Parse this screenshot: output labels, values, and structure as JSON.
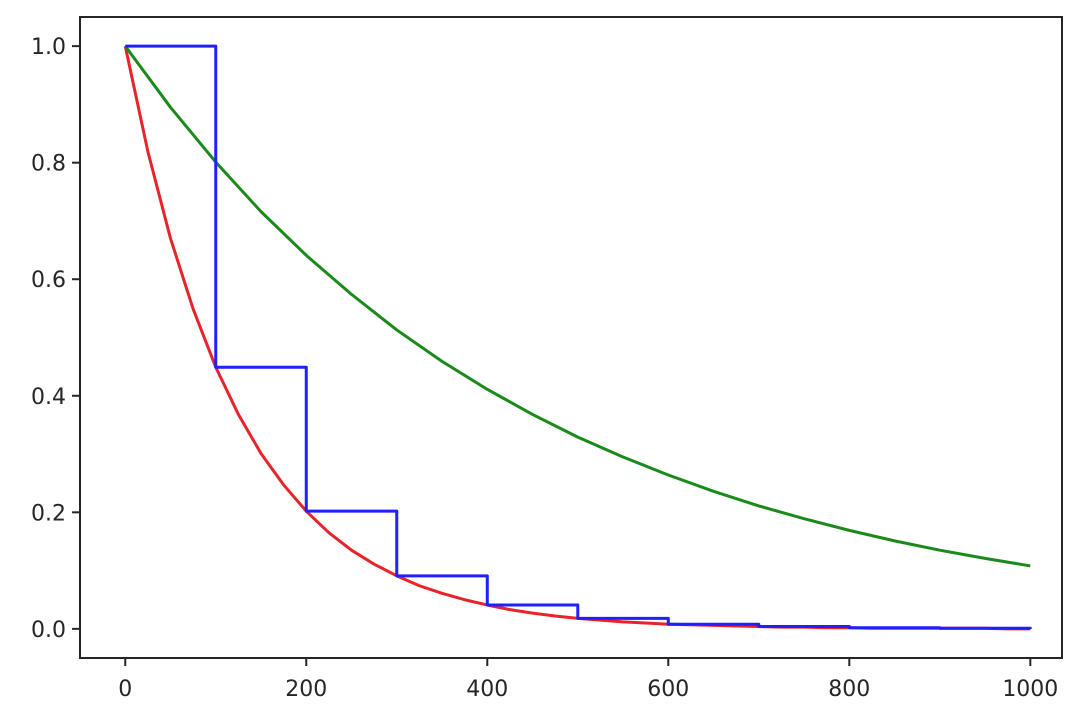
{
  "chart_data": {
    "type": "line",
    "title": "",
    "xlabel": "",
    "ylabel": "",
    "xlim": [
      -50,
      1035
    ],
    "ylim": [
      -0.05,
      1.05
    ],
    "x_ticks": [
      0,
      200,
      400,
      600,
      800,
      1000
    ],
    "y_ticks": [
      0.0,
      0.2,
      0.4,
      0.6,
      0.8,
      1.0
    ],
    "x_tick_labels": [
      "0",
      "200",
      "400",
      "600",
      "800",
      "1000"
    ],
    "y_tick_labels": [
      "0.0",
      "0.2",
      "0.4",
      "0.6",
      "0.8",
      "1.0"
    ],
    "grid": false,
    "legend": false,
    "series": [
      {
        "color": "#e8242a",
        "style": "smooth",
        "x": [
          0,
          25,
          50,
          75,
          100,
          125,
          150,
          175,
          200,
          225,
          250,
          275,
          300,
          325,
          350,
          375,
          400,
          425,
          450,
          475,
          500,
          525,
          550,
          575,
          600,
          625,
          650,
          675,
          700,
          725,
          750,
          775,
          800,
          825,
          850,
          875,
          900,
          925,
          950,
          975,
          1000
        ],
        "y": [
          1.0,
          0.819,
          0.67,
          0.549,
          0.449,
          0.368,
          0.301,
          0.247,
          0.202,
          0.165,
          0.135,
          0.111,
          0.091,
          0.074,
          0.061,
          0.05,
          0.041,
          0.033,
          0.027,
          0.022,
          0.018,
          0.015,
          0.012,
          0.01,
          0.008,
          0.007,
          0.006,
          0.005,
          0.004,
          0.003,
          0.003,
          0.002,
          0.002,
          0.001,
          0.001,
          0.001,
          0.001,
          0.001,
          0.001,
          0.0,
          0.0
        ]
      },
      {
        "color": "#1a8a1a",
        "style": "smooth",
        "x": [
          0,
          50,
          100,
          150,
          200,
          250,
          300,
          350,
          400,
          450,
          500,
          550,
          600,
          650,
          700,
          750,
          800,
          850,
          900,
          950,
          1000
        ],
        "y": [
          1.0,
          0.895,
          0.801,
          0.716,
          0.641,
          0.574,
          0.513,
          0.459,
          0.411,
          0.368,
          0.329,
          0.295,
          0.264,
          0.236,
          0.211,
          0.189,
          0.169,
          0.151,
          0.135,
          0.121,
          0.108
        ]
      },
      {
        "color": "#1f1fff",
        "style": "step",
        "x": [
          0,
          100,
          200,
          300,
          400,
          500,
          600,
          700,
          800,
          900,
          1000
        ],
        "y": [
          1.0,
          0.449,
          0.202,
          0.091,
          0.041,
          0.018,
          0.008,
          0.004,
          0.002,
          0.001,
          0.0
        ]
      }
    ]
  }
}
